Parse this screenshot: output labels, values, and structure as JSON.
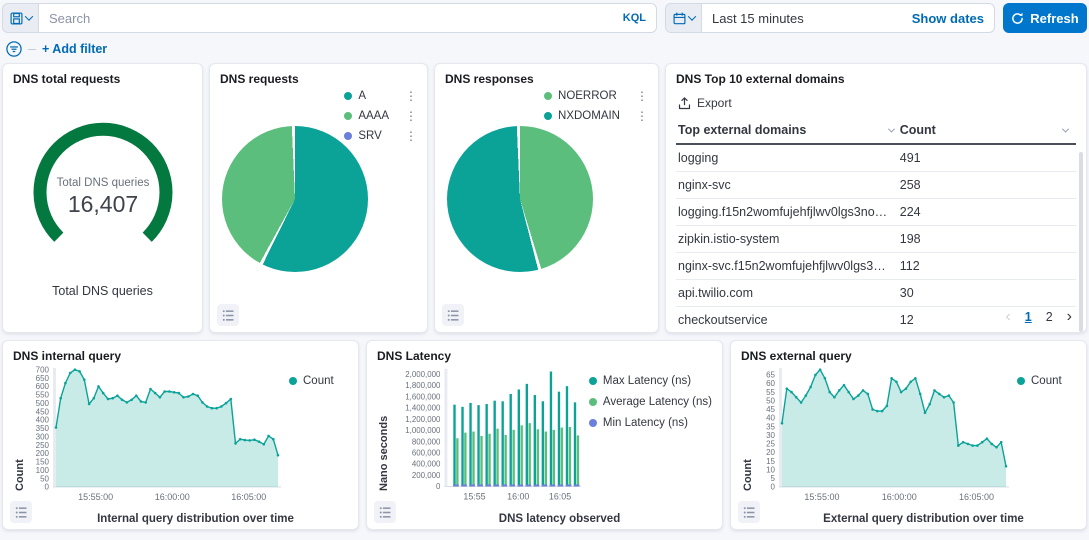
{
  "colors": {
    "teal": "#0ba298",
    "green": "#5bbe7d",
    "dark_green": "#04793f",
    "purple": "#6b7fdd",
    "blue": "#0077cc",
    "link": "#006bb4",
    "area_fill": "rgba(11,162,152,0.22)"
  },
  "topbar": {
    "search_placeholder": "Search",
    "kql": "KQL",
    "time_range": "Last 15 minutes",
    "show_dates": "Show dates",
    "refresh": "Refresh"
  },
  "filterbar": {
    "add_filter": "+ Add filter"
  },
  "gauge_panel": {
    "title": "DNS total requests",
    "center_label": "Total DNS queries",
    "center_value": "16,407",
    "caption": "Total DNS queries"
  },
  "requests_pie": {
    "title": "DNS requests",
    "slices": [
      {
        "label": "A",
        "pct": 58,
        "color": "#0ba298"
      },
      {
        "label": "AAAA",
        "pct": 42,
        "color": "#5bbe7d"
      },
      {
        "label": "SRV",
        "pct": 0,
        "color": "#6b7fdd"
      }
    ]
  },
  "responses_pie": {
    "title": "DNS responses",
    "slices": [
      {
        "label": "NOERROR",
        "pct": 46,
        "color": "#5bbe7d"
      },
      {
        "label": "NXDOMAIN",
        "pct": 54,
        "color": "#0ba298"
      }
    ]
  },
  "domains_table": {
    "title": "DNS Top 10 external domains",
    "export": "Export",
    "columns": [
      "Top external domains",
      "Count"
    ],
    "rows": [
      {
        "domain": "logging",
        "count": "491"
      },
      {
        "domain": "nginx-svc",
        "count": "258"
      },
      {
        "domain": "logging.f15n2womfujehfjlwv0lgs3nog....",
        "count": "224"
      },
      {
        "domain": "zipkin.istio-system",
        "count": "198"
      },
      {
        "domain": "nginx-svc.f15n2womfujehfjlwv0lgs3no...",
        "count": "112"
      },
      {
        "domain": "api.twilio.com",
        "count": "30"
      },
      {
        "domain": "checkoutservice",
        "count": "12"
      }
    ],
    "pages": [
      "1",
      "2"
    ]
  },
  "chart_data": [
    {
      "type": "area",
      "panel_title": "DNS internal query",
      "title": "Internal query distribution over time",
      "ylabel": "Count",
      "legend": [
        {
          "name": "Count",
          "color": "#0ba298"
        }
      ],
      "ylim": [
        0,
        710
      ],
      "ytick_top": 700,
      "ystep": 50,
      "yfmt": "plain",
      "xticks": [
        {
          "label": "15:55:00",
          "pos": 0.165
        },
        {
          "label": "16:00:00",
          "pos": 0.51
        },
        {
          "label": "16:05:00",
          "pos": 0.855
        }
      ],
      "values": [
        355,
        530,
        620,
        680,
        700,
        690,
        640,
        495,
        530,
        600,
        560,
        525,
        530,
        545,
        520,
        505,
        520,
        545,
        510,
        505,
        585,
        560,
        535,
        570,
        570,
        565,
        560,
        535,
        540,
        555,
        545,
        505,
        480,
        470,
        470,
        480,
        500,
        525,
        260,
        285,
        280,
        278,
        282,
        270,
        255,
        305,
        285,
        190
      ]
    },
    {
      "type": "bar",
      "panel_title": "DNS Latency",
      "title": "DNS latency observed",
      "ylabel": "Nano seconds",
      "ylim": [
        0,
        2100000
      ],
      "ytick_top": 2000000,
      "ystep": 200000,
      "yfmt": "comma",
      "xticks": [
        {
          "label": "15:55",
          "pos": 0.185
        },
        {
          "label": "16:00",
          "pos": 0.52
        },
        {
          "label": "16:05",
          "pos": 0.84
        }
      ],
      "series": [
        {
          "name": "Max Latency (ns)",
          "color": "#0ba298",
          "values": [
            1460000,
            1420000,
            1490000,
            1450000,
            1470000,
            1530000,
            1520000,
            1650000,
            1730000,
            1830000,
            1630000,
            1520000,
            2050000,
            1690000,
            1790000,
            1500000
          ]
        },
        {
          "name": "Average Latency (ns)",
          "color": "#5bbe7d",
          "values": [
            860000,
            960000,
            980000,
            900000,
            940000,
            1030000,
            920000,
            1010000,
            1090000,
            1130000,
            1020000,
            980000,
            1010000,
            1050000,
            1060000,
            910000
          ]
        },
        {
          "name": "Min Latency (ns)",
          "color": "#6b7fdd",
          "values": [
            15000,
            15000,
            15000,
            15000,
            15000,
            15000,
            15000,
            15000,
            15000,
            15000,
            15000,
            15000,
            15000,
            15000,
            15000,
            15000
          ]
        }
      ]
    },
    {
      "type": "area",
      "panel_title": "DNS external query",
      "title": "External query distribution over time",
      "ylabel": "Count",
      "legend": [
        {
          "name": "Count",
          "color": "#0ba298"
        }
      ],
      "ylim": [
        0,
        69
      ],
      "ytick_top": 65,
      "ystep": 5,
      "yfmt": "plain",
      "xticks": [
        {
          "label": "15:55:00",
          "pos": 0.165
        },
        {
          "label": "16:00:00",
          "pos": 0.51
        },
        {
          "label": "16:05:00",
          "pos": 0.855
        }
      ],
      "values": [
        37,
        57,
        55,
        52,
        49,
        53,
        58,
        65,
        68,
        63,
        55,
        52,
        56,
        59,
        55,
        51,
        53,
        56,
        54,
        45,
        44,
        44,
        47,
        63,
        61,
        55,
        57,
        61,
        63,
        54,
        43,
        48,
        56,
        54,
        52,
        53,
        49,
        24,
        26,
        25,
        24,
        24,
        26,
        28,
        25,
        23,
        26,
        12
      ]
    }
  ]
}
